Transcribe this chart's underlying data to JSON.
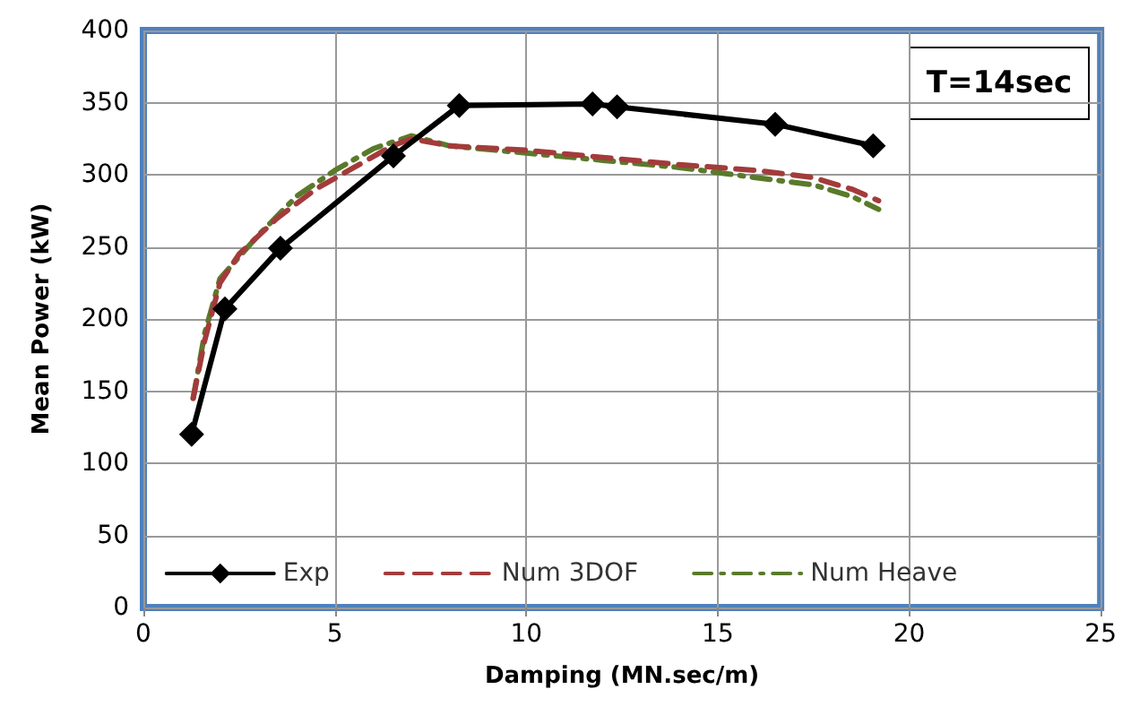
{
  "chart_data": {
    "type": "line",
    "xlabel": "Damping (MN.sec/m)",
    "ylabel": "Mean Power (kW)",
    "annotations": [
      "T=14sec"
    ],
    "xlim": [
      0,
      25
    ],
    "xticks": [
      0,
      5,
      10,
      15,
      20,
      25
    ],
    "ylim": [
      0,
      400
    ],
    "yticks": [
      0,
      50,
      100,
      150,
      200,
      250,
      300,
      350,
      400
    ],
    "grid": true,
    "legend": "bottom",
    "series": [
      {
        "name": "Exp",
        "color": "#000000",
        "marker": "diamond",
        "line_style": "solid",
        "x": [
          1.26,
          2.13,
          3.58,
          6.53,
          8.25,
          11.73,
          12.37,
          16.5,
          19.06
        ],
        "values": [
          120,
          207,
          249,
          313,
          348,
          349,
          347,
          335,
          320
        ]
      },
      {
        "name": "Num 3DOF",
        "color": "#a33b3b",
        "marker": "none",
        "line_style": "dashed",
        "x": [
          1.3,
          1.6,
          2,
          2.5,
          3.5,
          4.5,
          5.5,
          6.5,
          7,
          8,
          10,
          12,
          14,
          16,
          17.5,
          18.5,
          19.2
        ],
        "values": [
          145,
          185,
          225,
          245,
          270,
          290,
          305,
          320,
          325,
          320,
          317,
          312,
          307,
          303,
          298,
          290,
          282
        ]
      },
      {
        "name": "Num Heave",
        "color": "#5a7a2b",
        "marker": "none",
        "line_style": "dashdot",
        "x": [
          1.3,
          1.6,
          2,
          3,
          4,
          5,
          6,
          7,
          8,
          10,
          12,
          14,
          16,
          17.5,
          18.5,
          19.2
        ],
        "values": [
          145,
          190,
          228,
          258,
          285,
          303,
          318,
          327,
          320,
          315,
          310,
          305,
          298,
          293,
          285,
          276
        ]
      }
    ]
  }
}
